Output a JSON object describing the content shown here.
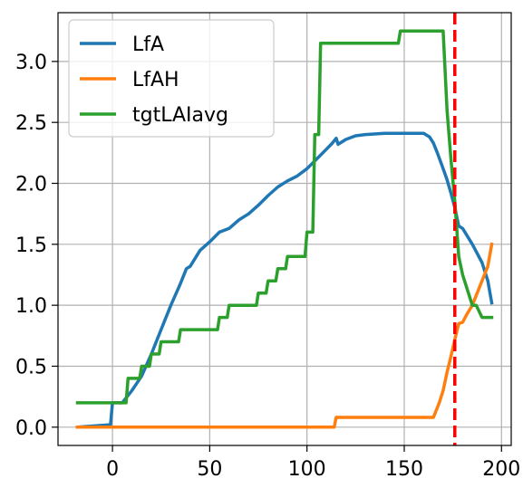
{
  "chart_data": {
    "type": "line",
    "title": "",
    "xlabel": "",
    "ylabel": "",
    "xlim": [
      -28,
      205
    ],
    "ylim": [
      -0.15,
      3.4
    ],
    "xticks": [
      0,
      50,
      100,
      150,
      200
    ],
    "yticks": [
      0.0,
      0.5,
      1.0,
      1.5,
      2.0,
      2.5,
      3.0
    ],
    "xtick_labels": [
      "0",
      "50",
      "100",
      "150",
      "200"
    ],
    "ytick_labels": [
      "0.0",
      "0.5",
      "1.0",
      "1.5",
      "2.0",
      "2.5",
      "3.0"
    ],
    "grid": true,
    "legend_position": "top-left",
    "vline": {
      "x": 176,
      "color": "#ff0000",
      "style": "dashed"
    },
    "series": [
      {
        "name": "LfA",
        "color": "#1f77b4",
        "x": [
          -18,
          -1,
          0,
          5,
          10,
          15,
          20,
          25,
          30,
          35,
          38,
          40,
          45,
          50,
          55,
          60,
          65,
          70,
          75,
          80,
          85,
          90,
          95,
          100,
          105,
          110,
          113,
          115,
          116,
          120,
          125,
          130,
          140,
          150,
          160,
          163,
          165,
          167,
          170,
          172,
          174,
          176,
          178,
          180,
          185,
          190,
          193,
          195
        ],
        "y": [
          0.0,
          0.02,
          0.2,
          0.2,
          0.3,
          0.42,
          0.6,
          0.8,
          1.0,
          1.18,
          1.3,
          1.32,
          1.45,
          1.52,
          1.6,
          1.63,
          1.7,
          1.75,
          1.82,
          1.9,
          1.97,
          2.02,
          2.06,
          2.12,
          2.2,
          2.28,
          2.33,
          2.37,
          2.32,
          2.36,
          2.39,
          2.4,
          2.41,
          2.41,
          2.41,
          2.38,
          2.33,
          2.25,
          2.12,
          2.03,
          1.92,
          1.8,
          1.65,
          1.63,
          1.5,
          1.35,
          1.2,
          1.02
        ]
      },
      {
        "name": "LfAH",
        "color": "#ff7f0e",
        "x": [
          -18,
          114,
          115,
          165,
          168,
          170,
          172,
          174,
          176,
          178,
          180,
          182,
          185,
          188,
          190,
          193,
          195
        ],
        "y": [
          0.0,
          0.0,
          0.08,
          0.08,
          0.2,
          0.3,
          0.45,
          0.58,
          0.72,
          0.85,
          0.86,
          0.92,
          1.0,
          1.12,
          1.2,
          1.32,
          1.5
        ]
      },
      {
        "name": "tgtLAIavg",
        "color": "#2ca02c",
        "x": [
          -18,
          7,
          8,
          14,
          15,
          19,
          20,
          24,
          25,
          34,
          35,
          54,
          55,
          59,
          60,
          74,
          75,
          79,
          80,
          84,
          85,
          89,
          90,
          94,
          95,
          99,
          100,
          103,
          104,
          106,
          107,
          147,
          148,
          165,
          170,
          172,
          174,
          176,
          178,
          180,
          183,
          185,
          187,
          190,
          195
        ],
        "y": [
          0.2,
          0.2,
          0.4,
          0.4,
          0.5,
          0.5,
          0.6,
          0.6,
          0.7,
          0.7,
          0.8,
          0.8,
          0.9,
          0.9,
          1.0,
          1.0,
          1.1,
          1.1,
          1.2,
          1.2,
          1.3,
          1.3,
          1.4,
          1.4,
          1.4,
          1.4,
          1.6,
          1.6,
          2.4,
          2.4,
          3.15,
          3.15,
          3.25,
          3.25,
          3.25,
          2.6,
          2.2,
          1.85,
          1.4,
          1.25,
          1.1,
          1.0,
          1.0,
          0.9,
          0.9
        ]
      }
    ]
  }
}
